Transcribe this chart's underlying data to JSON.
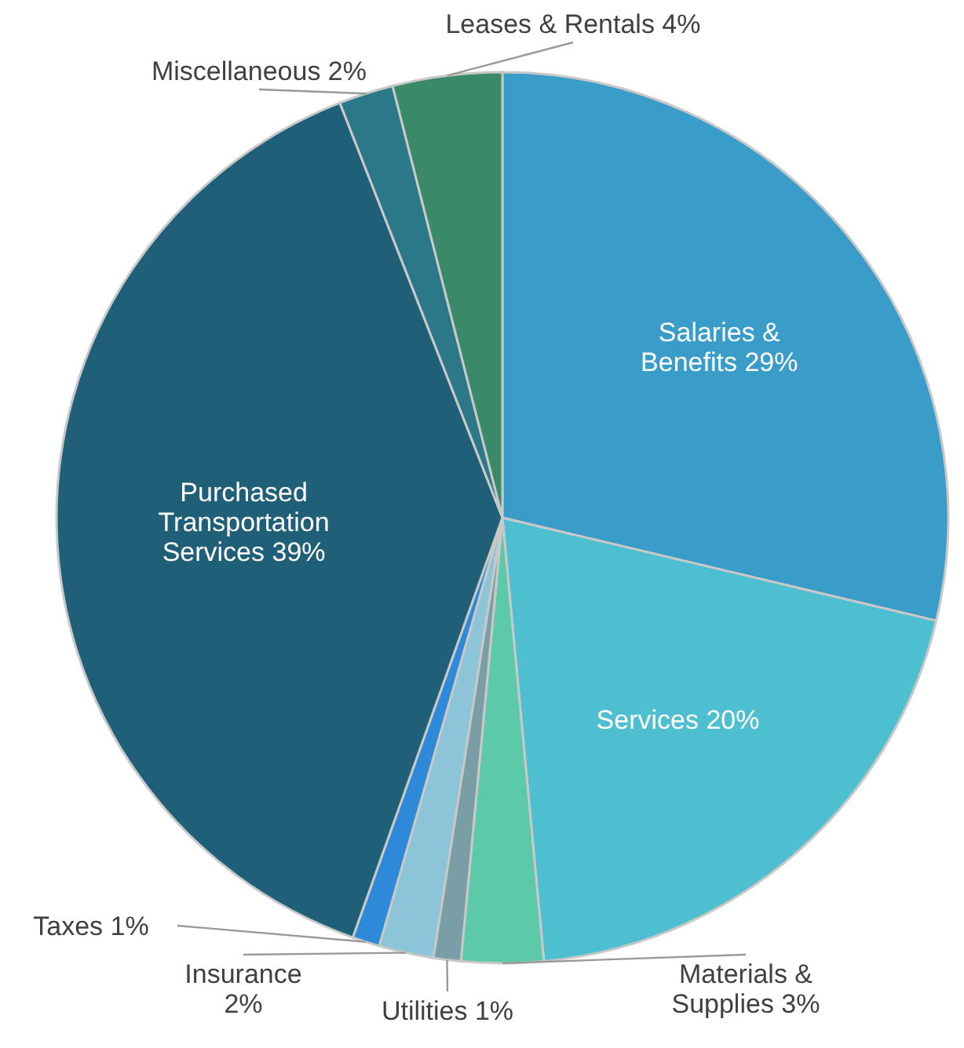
{
  "chart_data": {
    "type": "pie",
    "categories": [
      "Salaries & Benefits",
      "Services",
      "Materials & Supplies",
      "Utilities",
      "Insurance",
      "Taxes",
      "Purchased Transportation Services",
      "Miscellaneous",
      "Leases & Rentals"
    ],
    "values": [
      29,
      20,
      3,
      1,
      2,
      1,
      39,
      2,
      4
    ],
    "value_labels": [
      "29%",
      "20%",
      "3%",
      "1%",
      "2%",
      "1%",
      "39%",
      "2%",
      "4%"
    ],
    "colors": [
      "#3a9cc8",
      "#4dbfd0",
      "#5ccaa8",
      "#7a9ea6",
      "#8cc4d8",
      "#2e8ad8",
      "#1f5f78",
      "#2a7888",
      "#3a8a6a"
    ]
  }
}
